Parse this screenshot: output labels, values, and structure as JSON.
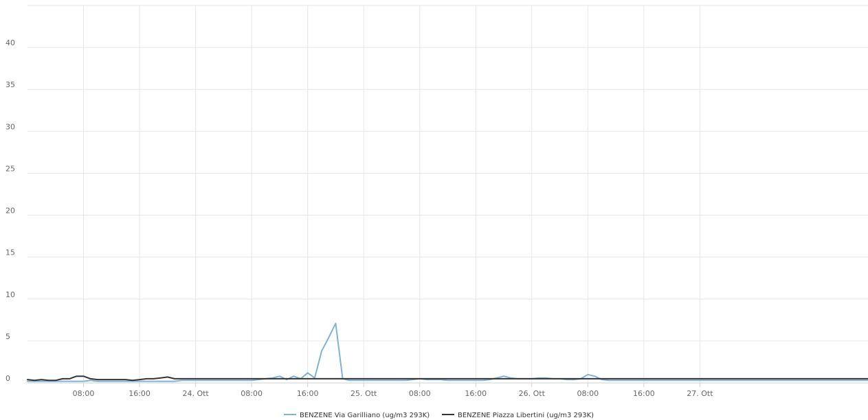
{
  "chart_data": {
    "type": "line",
    "title": "",
    "xlabel": "",
    "ylabel": "",
    "ylim": [
      0,
      45
    ],
    "y_ticks": [
      0,
      5,
      10,
      15,
      20,
      25,
      30,
      35,
      40
    ],
    "x_range_hours": [
      0,
      120
    ],
    "x_ticks": [
      {
        "hour": 8,
        "label": "08:00"
      },
      {
        "hour": 16,
        "label": "16:00"
      },
      {
        "hour": 24,
        "label": "24. Ott"
      },
      {
        "hour": 32,
        "label": "08:00"
      },
      {
        "hour": 40,
        "label": "16:00"
      },
      {
        "hour": 48,
        "label": "25. Ott"
      },
      {
        "hour": 56,
        "label": "08:00"
      },
      {
        "hour": 64,
        "label": "16:00"
      },
      {
        "hour": 72,
        "label": "26. Ott"
      },
      {
        "hour": 80,
        "label": "08:00"
      },
      {
        "hour": 88,
        "label": "16:00"
      },
      {
        "hour": 96,
        "label": "27. Ott"
      }
    ],
    "grid": true,
    "legend": "bottom-center",
    "series": [
      {
        "name": "BENZENE Via Garilliano (ug/m3 293K)",
        "color": "#7fb3d5",
        "values": [
          0.2,
          0.2,
          0.2,
          0.2,
          0.2,
          0.2,
          0.2,
          0.2,
          0.2,
          0.3,
          0.2,
          0.2,
          0.2,
          0.2,
          0.2,
          0.2,
          0.2,
          0.2,
          0.2,
          0.2,
          0.2,
          0.2,
          0.3,
          0.3,
          0.3,
          0.3,
          0.3,
          0.3,
          0.3,
          0.3,
          0.3,
          0.3,
          0.3,
          0.4,
          0.5,
          0.6,
          0.8,
          0.4,
          0.8,
          0.5,
          1.2,
          0.6,
          3.8,
          5.4,
          7.1,
          0.5,
          0.3,
          0.3,
          0.3,
          0.3,
          0.3,
          0.3,
          0.3,
          0.3,
          0.3,
          0.4,
          0.5,
          0.4,
          0.4,
          0.4,
          0.3,
          0.3,
          0.3,
          0.3,
          0.3,
          0.3,
          0.4,
          0.6,
          0.8,
          0.6,
          0.5,
          0.5,
          0.5,
          0.6,
          0.6,
          0.5,
          0.5,
          0.4,
          0.4,
          0.5,
          1.0,
          0.8,
          0.4,
          0.3,
          0.3,
          0.3,
          0.3,
          0.3,
          0.3,
          0.3,
          0.3,
          0.3,
          0.3,
          0.3,
          0.3,
          0.3,
          0.3,
          0.3,
          0.3,
          0.3,
          0.3,
          0.3,
          0.3,
          0.3,
          0.3,
          0.3,
          0.3,
          0.3,
          0.3,
          0.3,
          0.3,
          0.3,
          0.3,
          0.3,
          0.3,
          0.3,
          0.3,
          0.3,
          0.3,
          0.3,
          0.3
        ]
      },
      {
        "name": "BENZENE Piazza Libertini (ug/m3 293K)",
        "color": "#333333",
        "values": [
          0.4,
          0.3,
          0.4,
          0.3,
          0.3,
          0.5,
          0.5,
          0.8,
          0.8,
          0.5,
          0.4,
          0.4,
          0.4,
          0.4,
          0.4,
          0.3,
          0.4,
          0.5,
          0.5,
          0.6,
          0.7,
          0.5,
          0.5,
          0.5,
          0.5,
          0.5,
          0.5,
          0.5,
          0.5,
          0.5,
          0.5,
          0.5,
          0.5,
          0.5,
          0.5,
          0.5,
          0.5,
          0.5,
          0.5,
          0.5,
          0.5,
          0.5,
          0.5,
          0.5,
          0.5,
          0.5,
          0.5,
          0.5,
          0.5,
          0.5,
          0.5,
          0.5,
          0.5,
          0.5,
          0.5,
          0.5,
          0.5,
          0.5,
          0.5,
          0.5,
          0.5,
          0.5,
          0.5,
          0.5,
          0.5,
          0.5,
          0.5,
          0.5,
          0.5,
          0.5,
          0.5,
          0.5,
          0.5,
          0.5,
          0.5,
          0.5,
          0.5,
          0.5,
          0.5,
          0.5,
          0.5,
          0.5,
          0.5,
          0.5,
          0.5,
          0.5,
          0.5,
          0.5,
          0.5,
          0.5,
          0.5,
          0.5,
          0.5,
          0.5,
          0.5,
          0.5,
          0.5,
          0.5,
          0.5,
          0.5,
          0.5,
          0.5,
          0.5,
          0.5,
          0.5,
          0.5,
          0.5,
          0.5,
          0.5,
          0.5,
          0.5,
          0.5,
          0.5,
          0.5,
          0.5,
          0.5,
          0.5,
          0.5,
          0.5,
          0.5,
          0.5
        ]
      }
    ]
  }
}
